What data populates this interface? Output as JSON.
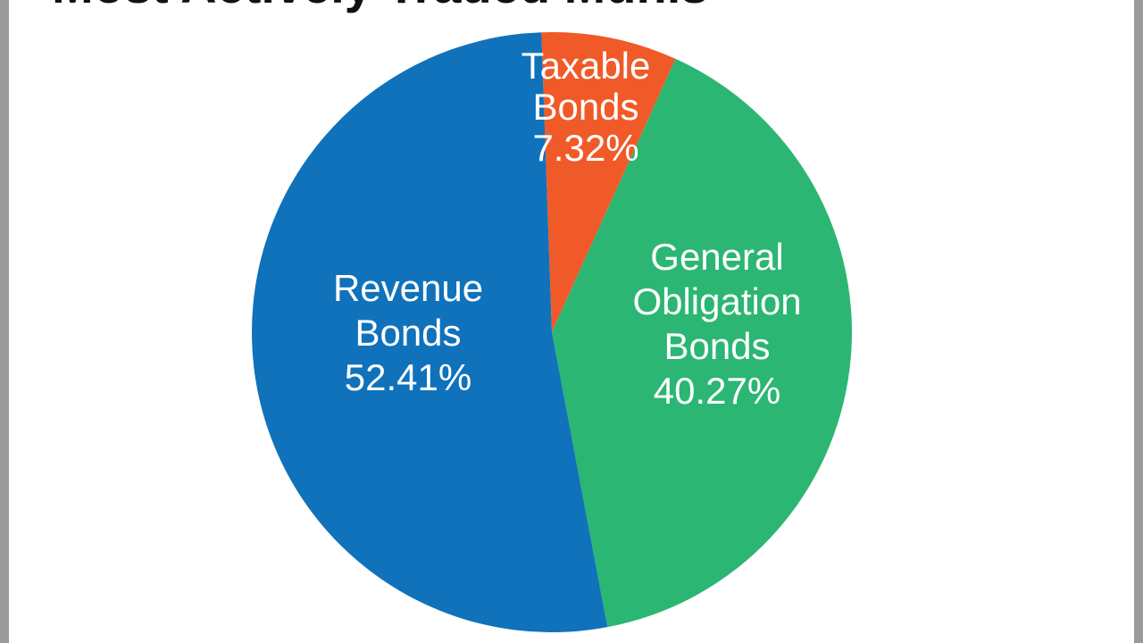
{
  "chart_data": {
    "type": "pie",
    "title": "Most Actively Traded Munis",
    "slices": [
      {
        "name": "Taxable Bonds",
        "label_lines": [
          "Taxable",
          "Bonds",
          "7.32%"
        ],
        "value": 7.32,
        "color": "#f05a28"
      },
      {
        "name": "General Obligation Bonds",
        "label_lines": [
          "General",
          "Obligation",
          "Bonds",
          "40.27%"
        ],
        "value": 40.27,
        "color": "#2bb673"
      },
      {
        "name": "Revenue Bonds",
        "label_lines": [
          "Revenue",
          "Bonds",
          "52.41%"
        ],
        "value": 52.41,
        "color": "#0f72bb"
      }
    ]
  }
}
